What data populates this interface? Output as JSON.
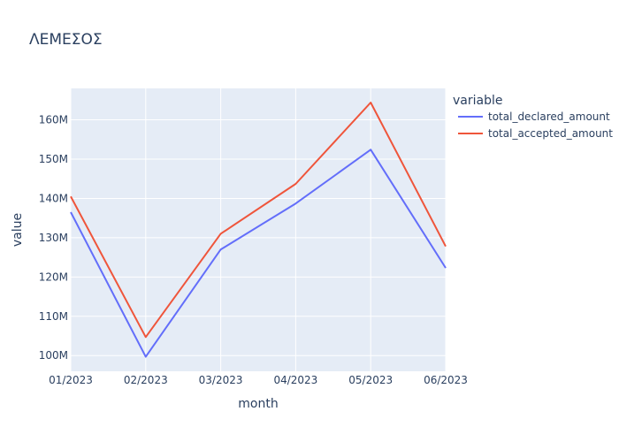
{
  "chart_data": {
    "type": "line",
    "title": "ΛΕΜΕΣΟΣ",
    "xlabel": "month",
    "ylabel": "value",
    "categories": [
      "01/2023",
      "02/2023",
      "03/2023",
      "04/2023",
      "05/2023",
      "06/2023"
    ],
    "ylim": [
      96000000,
      168000000
    ],
    "yticks": [
      100000000,
      110000000,
      120000000,
      130000000,
      140000000,
      150000000,
      160000000
    ],
    "ytick_labels": [
      "100M",
      "110M",
      "120M",
      "130M",
      "140M",
      "150M",
      "160M"
    ],
    "grid": true,
    "legend": {
      "title": "variable",
      "position": "right"
    },
    "series": [
      {
        "name": "total_declared_amount",
        "color": "#636efa",
        "values": [
          136500000,
          99700000,
          127000000,
          138700000,
          152400000,
          122300000
        ]
      },
      {
        "name": "total_accepted_amount",
        "color": "#ef553b",
        "values": [
          140500000,
          104700000,
          131000000,
          143700000,
          164400000,
          127800000
        ]
      }
    ]
  },
  "colors": {
    "plot_background": "#e5ecf6",
    "grid": "#ffffff",
    "text": "#2a3f5f"
  }
}
